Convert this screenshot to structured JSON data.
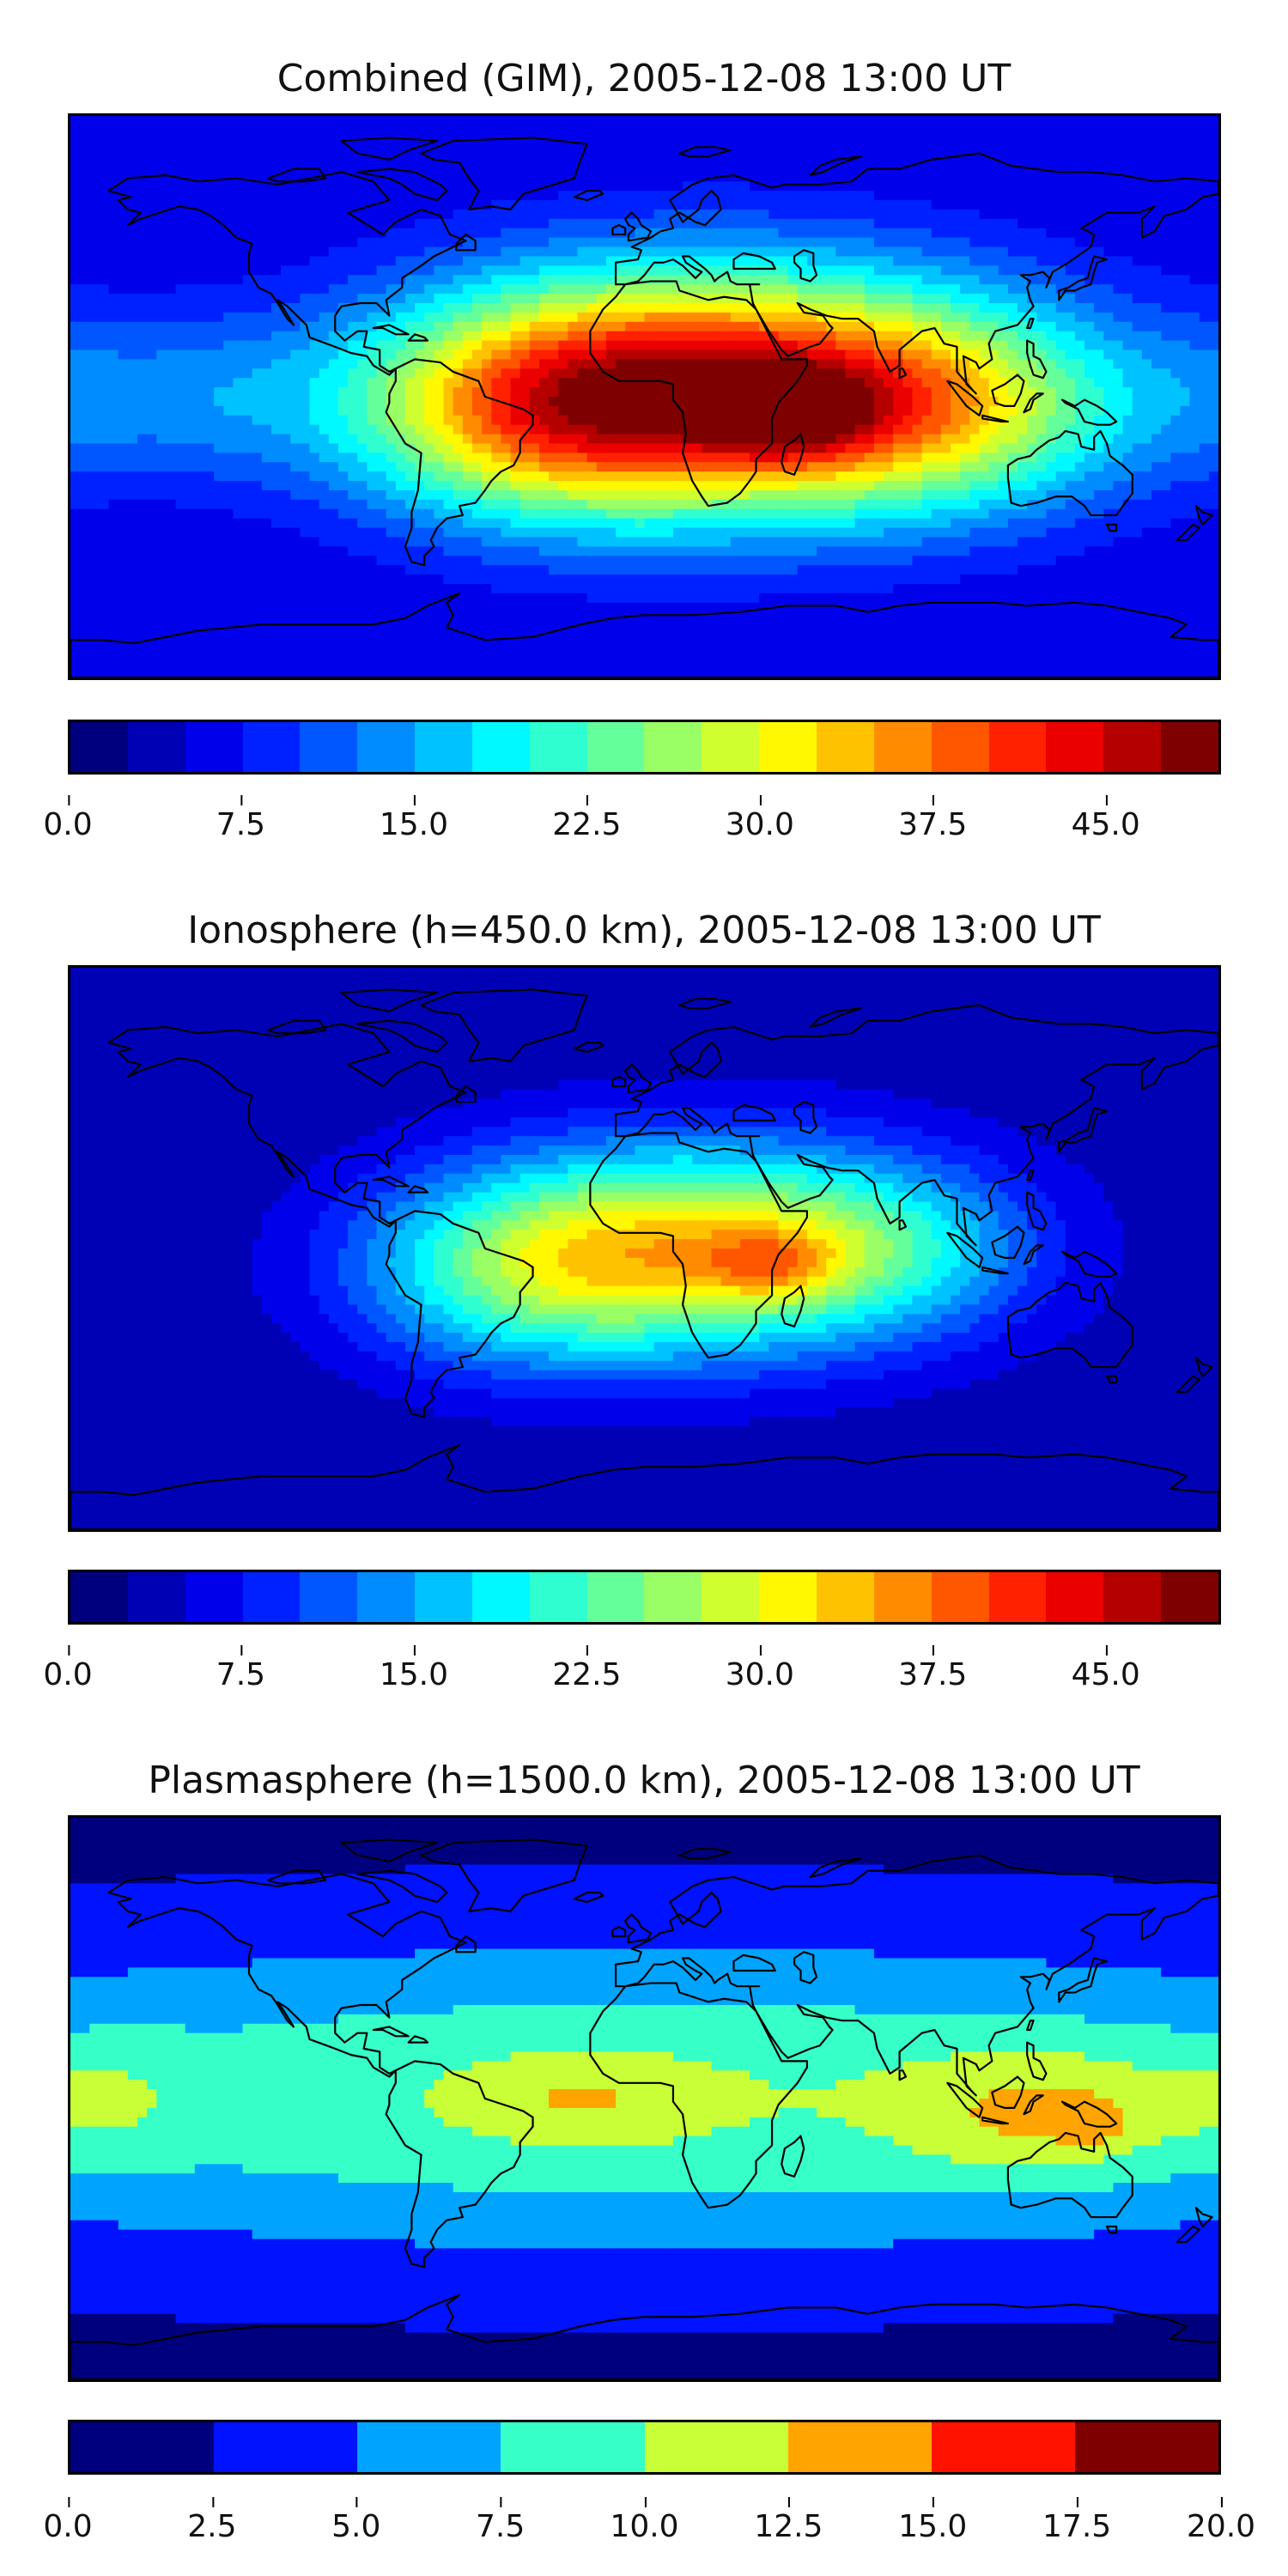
{
  "chart_data": [
    {
      "type": "heatmap",
      "title": "Combined (GIM), 2005-12-08 13:00 UT",
      "colorbar": {
        "min": 0.0,
        "max": 50.0,
        "levels": 20,
        "ticks": [
          "0.0",
          "7.5",
          "15.0",
          "22.5",
          "30.0",
          "37.5",
          "45.0"
        ],
        "tick_values": [
          0.0,
          7.5,
          15.0,
          22.5,
          30.0,
          37.5,
          45.0
        ]
      },
      "field": {
        "base": 5,
        "sources": [
          {
            "lon": 25,
            "lat": 2,
            "amp": 38,
            "slon": 65,
            "slat": 28
          },
          {
            "lon": 45,
            "lat": -5,
            "amp": 12,
            "slon": 18,
            "slat": 10
          },
          {
            "lon": -35,
            "lat": -5,
            "amp": 16,
            "slon": 40,
            "slat": 24
          },
          {
            "lon": 95,
            "lat": -5,
            "amp": 12,
            "slon": 40,
            "slat": 22
          },
          {
            "lon": -150,
            "lat": 0,
            "amp": 8,
            "slon": 40,
            "slat": 20
          }
        ]
      }
    },
    {
      "type": "heatmap",
      "title": "Ionosphere  (h=450.0 km), 2005-12-08 13:00 UT",
      "colorbar": {
        "min": 0.0,
        "max": 50.0,
        "levels": 20,
        "ticks": [
          "0.0",
          "7.5",
          "15.0",
          "22.5",
          "30.0",
          "37.5",
          "45.0"
        ],
        "tick_values": [
          0.0,
          7.5,
          15.0,
          22.5,
          30.0,
          37.5,
          45.0
        ]
      },
      "field": {
        "base": 3,
        "sources": [
          {
            "lon": 20,
            "lat": 0,
            "amp": 27,
            "slon": 55,
            "slat": 24
          },
          {
            "lon": 40,
            "lat": -5,
            "amp": 8,
            "slon": 15,
            "slat": 8
          },
          {
            "lon": -40,
            "lat": -8,
            "amp": 12,
            "slon": 38,
            "slat": 22
          },
          {
            "lon": 80,
            "lat": 0,
            "amp": 6,
            "slon": 30,
            "slat": 18
          }
        ]
      }
    },
    {
      "type": "heatmap",
      "title": "Plasmasphere (h=1500.0 km), 2005-12-08 13:00 UT",
      "colorbar": {
        "min": 0.0,
        "max": 20.0,
        "levels": 8,
        "ticks": [
          "0.0",
          "2.5",
          "5.0",
          "7.5",
          "10.0",
          "12.5",
          "15.0",
          "17.5",
          "20.0"
        ],
        "tick_values": [
          0.0,
          2.5,
          5.0,
          7.5,
          10.0,
          12.5,
          15.0,
          17.5,
          20.0
        ]
      },
      "field": {
        "base": 1.5,
        "sources": [
          {
            "lon": 0,
            "lat": 0,
            "amp": 8.5,
            "slon": 220,
            "slat": 36
          },
          {
            "lon": -20,
            "lat": 0,
            "amp": 2.8,
            "slon": 25,
            "slat": 10
          },
          {
            "lon": 125,
            "lat": -5,
            "amp": 4.5,
            "slon": 30,
            "slat": 15
          },
          {
            "lon": 140,
            "lat": -8,
            "amp": 2.5,
            "slon": 8,
            "slat": 5
          },
          {
            "lon": -170,
            "lat": 0,
            "amp": 2.5,
            "slon": 20,
            "slat": 15
          }
        ]
      }
    }
  ],
  "colors": {
    "jet": [
      "#00007f",
      "#0000ff",
      "#007fff",
      "#00ffff",
      "#7fff7f",
      "#ffff00",
      "#ff7f00",
      "#ff0000",
      "#7f0000"
    ],
    "coast": "#000000"
  }
}
